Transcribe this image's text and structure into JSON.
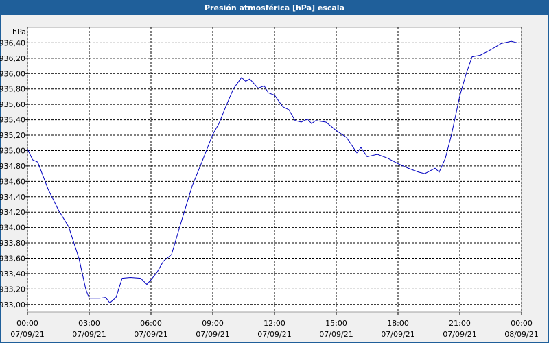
{
  "window_title": "Presión atmosférica [hPa] escala",
  "chart_data": {
    "type": "line",
    "y_label": "hPa",
    "grid": true,
    "series": [
      {
        "color": "#0000c0",
        "x": [
          0,
          0.25,
          0.5,
          1,
          1.5,
          2,
          2.5,
          2.83,
          3,
          3.5,
          3.8,
          4,
          4.3,
          4.6,
          5,
          5.5,
          5.8,
          6,
          6.3,
          6.6,
          7,
          7.5,
          8,
          8.5,
          9,
          9.3,
          9.6,
          10,
          10.4,
          10.6,
          10.8,
          11.2,
          11.5,
          11.7,
          12,
          12.4,
          12.7,
          13,
          13.3,
          13.6,
          13.8,
          14,
          14.5,
          15,
          15.5,
          16,
          16.2,
          16.5,
          17,
          17.5,
          18,
          18.5,
          19,
          19.3,
          19.8,
          20,
          20.3,
          20.6,
          21,
          21.3,
          21.6,
          22,
          22.5,
          23,
          23.5,
          23.8
        ],
        "values": [
          935.02,
          934.88,
          934.85,
          934.5,
          934.23,
          934.01,
          933.6,
          933.2,
          933.08,
          933.08,
          933.09,
          933.02,
          933.09,
          933.34,
          933.35,
          933.34,
          933.26,
          933.32,
          933.42,
          933.56,
          933.65,
          934.1,
          934.54,
          934.87,
          935.21,
          935.35,
          935.55,
          935.8,
          935.95,
          935.9,
          935.93,
          935.81,
          935.84,
          935.75,
          935.72,
          935.57,
          935.53,
          935.39,
          935.37,
          935.41,
          935.35,
          935.39,
          935.37,
          935.26,
          935.17,
          934.97,
          935.04,
          934.92,
          934.95,
          934.9,
          934.83,
          934.77,
          934.72,
          934.7,
          934.77,
          934.72,
          934.9,
          935.21,
          935.71,
          935.99,
          936.22,
          936.24,
          936.31,
          936.39,
          936.42,
          936.4
        ]
      }
    ],
    "xlim": [
      0,
      24
    ],
    "ylim": [
      932.9,
      936.6
    ],
    "xticks": [
      {
        "value": 0,
        "label": [
          "00:00",
          "07/09/21"
        ]
      },
      {
        "value": 3,
        "label": [
          "03:00",
          "07/09/21"
        ]
      },
      {
        "value": 6,
        "label": [
          "06:00",
          "07/09/21"
        ]
      },
      {
        "value": 9,
        "label": [
          "09:00",
          "07/09/21"
        ]
      },
      {
        "value": 12,
        "label": [
          "12:00",
          "07/09/21"
        ]
      },
      {
        "value": 15,
        "label": [
          "15:00",
          "07/09/21"
        ]
      },
      {
        "value": 18,
        "label": [
          "18:00",
          "07/09/21"
        ]
      },
      {
        "value": 21,
        "label": [
          "21:00",
          "07/09/21"
        ]
      },
      {
        "value": 24,
        "label": [
          "00:00",
          "08/09/21"
        ]
      }
    ],
    "yticks": [
      {
        "value": 933.0,
        "label": "933,00"
      },
      {
        "value": 933.2,
        "label": "933,20"
      },
      {
        "value": 933.4,
        "label": "933,40"
      },
      {
        "value": 933.6,
        "label": "933,60"
      },
      {
        "value": 933.8,
        "label": "933,80"
      },
      {
        "value": 934.0,
        "label": "934,00"
      },
      {
        "value": 934.2,
        "label": "934,20"
      },
      {
        "value": 934.4,
        "label": "934,40"
      },
      {
        "value": 934.6,
        "label": "934,60"
      },
      {
        "value": 934.8,
        "label": "934,80"
      },
      {
        "value": 935.0,
        "label": "935,00"
      },
      {
        "value": 935.2,
        "label": "935,20"
      },
      {
        "value": 935.4,
        "label": "935,40"
      },
      {
        "value": 935.6,
        "label": "935,60"
      },
      {
        "value": 935.8,
        "label": "935,80"
      },
      {
        "value": 936.0,
        "label": "936,00"
      },
      {
        "value": 936.2,
        "label": "936,20"
      },
      {
        "value": 936.4,
        "label": "936,40"
      }
    ]
  }
}
